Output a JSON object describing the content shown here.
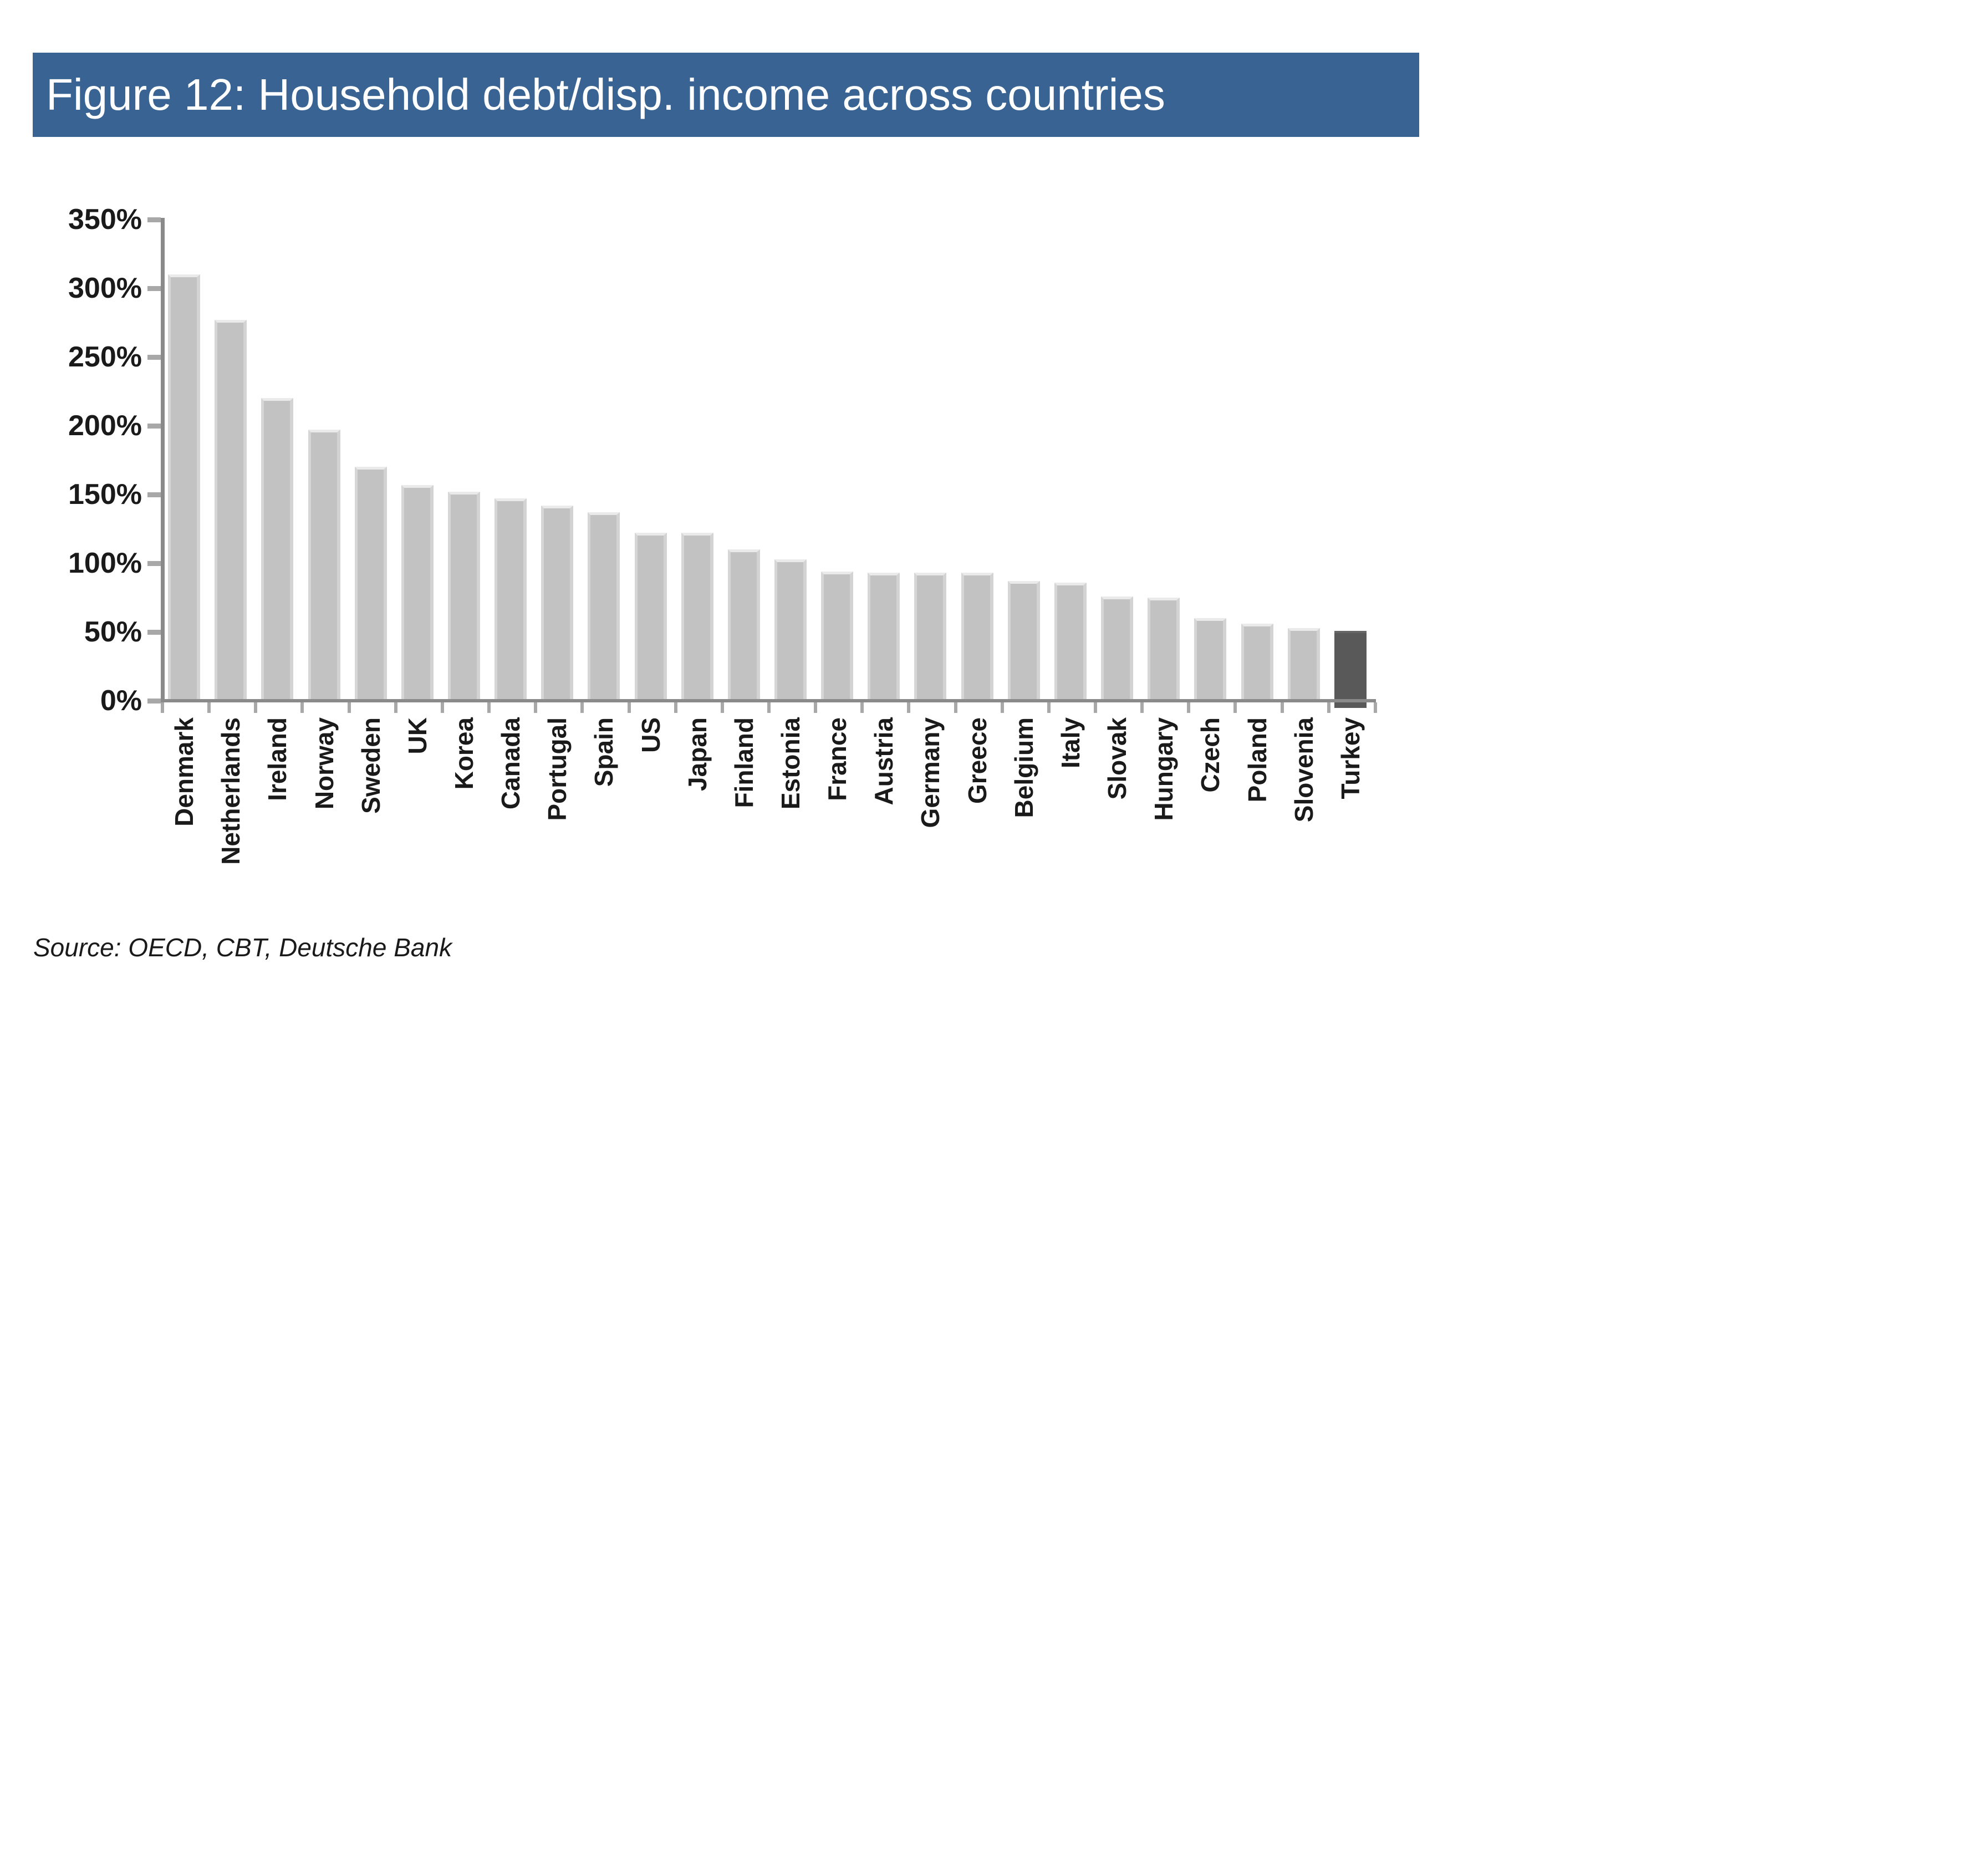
{
  "title": "Figure 12: Household debt/disp. income across countries",
  "source": "Source: OECD, CBT, Deutsche Bank",
  "colors": {
    "title_bar_background": "#386393",
    "title_text": "#ffffff",
    "bar": "#c2c2c2",
    "highlight_bar": "#595959",
    "axis_line": "#8a8a8a",
    "tick_mark": "#a8a8a8",
    "label_text": "#1a1a1a"
  },
  "chart_data": {
    "type": "bar",
    "title": "Figure 12: Household debt/disp. income across countries",
    "categories": [
      "Denmark",
      "Netherlands",
      "Ireland",
      "Norway",
      "Sweden",
      "UK",
      "Korea",
      "Canada",
      "Portugal",
      "Spain",
      "US",
      "Japan",
      "Finland",
      "Estonia",
      "France",
      "Austria",
      "Germany",
      "Greece",
      "Belgium",
      "Italy",
      "Slovak",
      "Hungary",
      "Czech",
      "Poland",
      "Slovenia",
      "Turkey"
    ],
    "values": [
      310,
      277,
      220,
      197,
      170,
      157,
      152,
      147,
      142,
      137,
      122,
      122,
      110,
      103,
      94,
      93,
      93,
      93,
      87,
      86,
      76,
      75,
      60,
      56,
      53,
      51
    ],
    "unit": "%",
    "highlight_category": "Turkey",
    "yticks": [
      "350%",
      "300%",
      "250%",
      "200%",
      "150%",
      "100%",
      "50%",
      "0%"
    ],
    "ylim": [
      0,
      350
    ],
    "xlabel": "",
    "ylabel": "",
    "grid": false,
    "legend": "none",
    "x_label_rotation": -90,
    "source": "Source: OECD, CBT, Deutsche Bank"
  }
}
